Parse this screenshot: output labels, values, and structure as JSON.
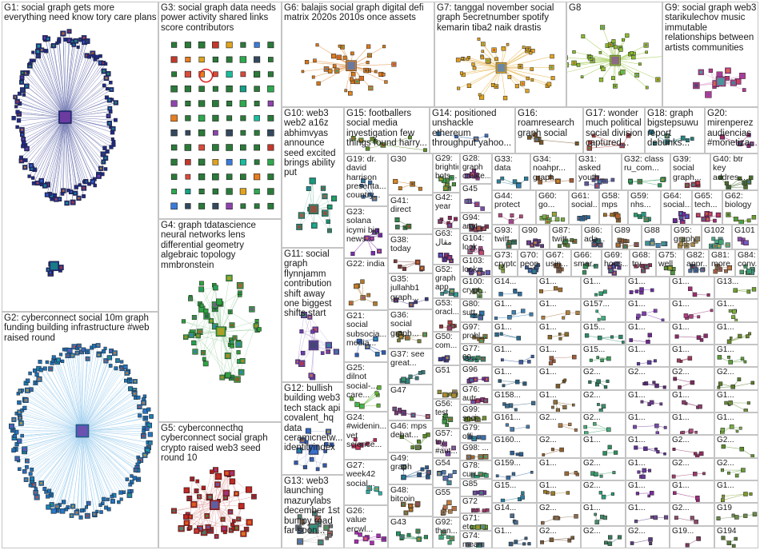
{
  "panels": [
    {
      "id": "G1",
      "title": "G1: social graph gets more everything need know tory care plans",
      "style": "big-blue",
      "accent": "#1f2a86"
    },
    {
      "id": "G2",
      "title": "G2: cyberconnect social 10m graph funding building infrastructure #web raised round",
      "style": "big-cyan",
      "accent": "#1e6fb5"
    },
    {
      "id": "G3",
      "title": "G3: social graph data needs power activity shared links score contributors",
      "style": "grid-green",
      "accent": "#2b7a3a"
    },
    {
      "id": "G4",
      "title": "G4: graph tdatascience neural networks lens differential geometry algebraic topology mmbronstein",
      "style": "cluster-green",
      "accent": "#2f9c3c"
    },
    {
      "id": "G5",
      "title": "G5: cyberconnecthq cyberconnect social graph crypto raised web3 seed round 10",
      "style": "cluster-red",
      "accent": "#b21c1c"
    },
    {
      "id": "G6",
      "title": "G6: balajis social graph digital defi matrix 2020s 2010s once assets",
      "style": "star-orange",
      "accent": "#d8791b"
    },
    {
      "id": "G7",
      "title": "G7: tanggal november social graph 5ecretnumber spotify kemarin tiba2 naik drastis",
      "style": "star-gold",
      "accent": "#e0a320"
    },
    {
      "id": "G8",
      "title": "G8",
      "style": "star-lime",
      "accent": "#8bbf2a"
    },
    {
      "id": "G9",
      "title": "G9: social graph web3 starikulechov music immutable relationships between artists communities",
      "style": "cluster-magenta",
      "accent": "#b8398f"
    },
    {
      "id": "G10",
      "title": "G10: web3 web2 a16z abhimvyas announce seed excited brings ability put",
      "style": "cluster-teal",
      "accent": "#1c8c73"
    },
    {
      "id": "G11",
      "title": "G11: social graph flynnjamm contribution shift away one biggest shifts start",
      "style": "cluster-violet",
      "accent": "#6b3fb0"
    },
    {
      "id": "G12",
      "title": "G12: bullish building web3 tech stack api covalent_hq data ceramicnetw... identityindex",
      "style": "cluster-blue",
      "accent": "#3358a8"
    },
    {
      "id": "G13",
      "title": "G13: web3 launching mazurylabs december 1st bumpy road far soon...",
      "style": "cluster-gray",
      "accent": "#6f6f6f"
    },
    {
      "id": "G14",
      "title": "G14: positioned unshackle ethereum throughput yahoo...",
      "style": "plain",
      "accent": "#3d6fb6"
    },
    {
      "id": "G15",
      "title": "G15: footballers social media investigation few things found harry...",
      "style": "plain",
      "accent": "#5e8c2b"
    },
    {
      "id": "G16",
      "title": "G16: roamresearch graph social",
      "style": "plain",
      "accent": "#7a5a2b"
    },
    {
      "id": "G17",
      "title": "G17: wonder much political social division captured...",
      "style": "plain",
      "accent": "#b04040"
    },
    {
      "id": "G18",
      "title": "G18: graph bigstepsuwu report debunks...",
      "style": "plain",
      "accent": "#2b7a7a"
    },
    {
      "id": "G20",
      "title": "G20: mirenperez audiencias #monetiza...",
      "style": "plain",
      "accent": "#8a2b7a"
    },
    {
      "id": "G19",
      "title": "G19: dr. david harrison presenta... country...",
      "style": "small",
      "accent": "#3b6ea5"
    },
    {
      "id": "G30",
      "title": "G30",
      "style": "small",
      "accent": "#c77a1f"
    },
    {
      "id": "G29",
      "title": "G29: brightidp... bots...",
      "style": "small",
      "accent": "#4a8f3b"
    },
    {
      "id": "G28",
      "title": "G28: graph create...",
      "style": "small",
      "accent": "#8b3a8b"
    },
    {
      "id": "G33",
      "title": "G33: data",
      "style": "small",
      "accent": "#2d7f9a"
    },
    {
      "id": "G34",
      "title": "G34: noahpr... graph...",
      "style": "small",
      "accent": "#9a5b2d"
    },
    {
      "id": "G31",
      "title": "G31: asked youth...",
      "style": "small",
      "accent": "#5b5b9a"
    },
    {
      "id": "G32",
      "title": "G32: class ru_com...",
      "style": "small",
      "accent": "#2d9a5b"
    },
    {
      "id": "G39",
      "title": "G39: social graph...",
      "style": "small",
      "accent": "#9a2d4a"
    },
    {
      "id": "G40",
      "title": "G40: btr key addres...",
      "style": "small",
      "accent": "#4a6d2d"
    },
    {
      "id": "G23",
      "title": "G23: solana icymi big news...",
      "style": "small",
      "accent": "#7a2db0"
    },
    {
      "id": "G22",
      "title": "G22: india",
      "style": "small",
      "accent": "#b07a2d"
    },
    {
      "id": "G21",
      "title": "G21: social subsocia... media...",
      "style": "small",
      "accent": "#2d5bb0"
    },
    {
      "id": "G25",
      "title": "G25: dilnot social-... care...",
      "style": "small",
      "accent": "#5bb02d"
    },
    {
      "id": "G24",
      "title": "G24: #widenin... vet science...",
      "style": "small",
      "accent": "#b02d5b"
    },
    {
      "id": "G27",
      "title": "G27: week42 social...",
      "style": "small",
      "accent": "#2db0a5"
    },
    {
      "id": "G26",
      "title": "G26: value ercwl...",
      "style": "small",
      "accent": "#a52db0"
    },
    {
      "id": "G41",
      "title": "G41: direct",
      "style": "small",
      "accent": "#3a7a3a"
    },
    {
      "id": "G38",
      "title": "G38: today",
      "style": "small",
      "accent": "#7a3a3a"
    },
    {
      "id": "G35",
      "title": "G35: jullahb1 graph...",
      "style": "small",
      "accent": "#3a3a7a"
    },
    {
      "id": "G36",
      "title": "G36: social graph...",
      "style": "small",
      "accent": "#7a7a3a"
    },
    {
      "id": "G37",
      "title": "G37: see great...",
      "style": "small",
      "accent": "#3a7a7a"
    },
    {
      "id": "G47",
      "title": "G47",
      "style": "small",
      "accent": "#7a3a7a"
    },
    {
      "id": "G46",
      "title": "G46: mps debat...",
      "style": "small",
      "accent": "#5a8a2a"
    },
    {
      "id": "G49",
      "title": "G49: graph",
      "style": "small",
      "accent": "#2a5a8a"
    },
    {
      "id": "G48",
      "title": "G48: bitcoin",
      "style": "small",
      "accent": "#8a5a2a"
    },
    {
      "id": "G43",
      "title": "G43",
      "style": "small",
      "accent": "#2a8a5a"
    },
    {
      "id": "G42",
      "title": "G42: year",
      "style": "small",
      "accent": "#8a2a5a"
    },
    {
      "id": "G63",
      "title": "G63: مقال",
      "style": "small",
      "accent": "#5a2a8a"
    },
    {
      "id": "G52",
      "title": "G52: graph app...",
      "style": "small",
      "accent": "#3c8c8c"
    },
    {
      "id": "G53",
      "title": "G53: oracl...",
      "style": "small",
      "accent": "#8c3c3c"
    },
    {
      "id": "G50",
      "title": "G50: com...",
      "style": "small",
      "accent": "#3c3c8c"
    },
    {
      "id": "G51",
      "title": "G51",
      "style": "small",
      "accent": "#8c8c3c"
    },
    {
      "id": "G56",
      "title": "G56: test",
      "style": "small",
      "accent": "#3c8c3c"
    },
    {
      "id": "G57",
      "title": "G57: try #aut...",
      "style": "small",
      "accent": "#8c3c8c"
    },
    {
      "id": "G54",
      "title": "G54",
      "style": "small",
      "accent": "#4c7cac"
    },
    {
      "id": "G55",
      "title": "G55",
      "style": "small",
      "accent": "#ac7c4c"
    },
    {
      "id": "G92",
      "title": "G92: than...",
      "style": "small",
      "accent": "#4cac7c"
    },
    {
      "id": "G45",
      "title": "G45",
      "style": "small",
      "accent": "#7c4cac"
    },
    {
      "id": "G44",
      "title": "G44: protect",
      "style": "small",
      "accent": "#ac4c7c"
    },
    {
      "id": "G60",
      "title": "G60: go...",
      "style": "small",
      "accent": "#7cac4c"
    },
    {
      "id": "G61",
      "title": "G61: social...",
      "style": "small",
      "accent": "#2c6c9c"
    },
    {
      "id": "G58",
      "title": "G58: mps",
      "style": "small",
      "accent": "#9c6c2c"
    },
    {
      "id": "G59",
      "title": "G59: nhs...",
      "style": "small",
      "accent": "#2c9c6c"
    },
    {
      "id": "G64",
      "title": "G64: social...",
      "style": "small",
      "accent": "#6c2c9c"
    },
    {
      "id": "G65",
      "title": "G65: tech...",
      "style": "small",
      "accent": "#9c2c6c"
    },
    {
      "id": "G62",
      "title": "G62: biology",
      "style": "small",
      "accent": "#6c9c2c"
    },
    {
      "id": "G93",
      "title": "G93: twitt...",
      "style": "small",
      "accent": "#3d7d5d"
    },
    {
      "id": "G94",
      "title": "G94: anyt...",
      "style": "small",
      "accent": "#7d3d5d"
    },
    {
      "id": "G90",
      "title": "G90",
      "style": "small",
      "accent": "#5d3d7d"
    },
    {
      "id": "G87",
      "title": "G87: twitt...",
      "style": "small",
      "accent": "#5d7d3d"
    },
    {
      "id": "G86",
      "title": "G86: ada...",
      "style": "small",
      "accent": "#3d5d7d"
    },
    {
      "id": "G89",
      "title": "G89",
      "style": "small",
      "accent": "#7d5d3d"
    },
    {
      "id": "G88",
      "title": "G88",
      "style": "small",
      "accent": "#4a8aaa"
    },
    {
      "id": "G95",
      "title": "G95: graph",
      "style": "small",
      "accent": "#aa8a4a"
    },
    {
      "id": "G102",
      "title": "G102",
      "style": "small",
      "accent": "#4aaa8a"
    },
    {
      "id": "G101",
      "title": "G101",
      "style": "small",
      "accent": "#8a4aaa"
    },
    {
      "id": "G104",
      "title": "G104: look...",
      "style": "small",
      "accent": "#aa4a8a"
    },
    {
      "id": "G73",
      "title": "G73: crypto",
      "style": "small",
      "accent": "#8aaa4a"
    },
    {
      "id": "G70",
      "title": "G70: peop...",
      "style": "small",
      "accent": "#3b5b8b"
    },
    {
      "id": "G67",
      "title": "G67: usin...",
      "style": "small",
      "accent": "#8b5b3b"
    },
    {
      "id": "G66",
      "title": "G66: smar...",
      "style": "small",
      "accent": "#3b8b5b"
    },
    {
      "id": "G69",
      "title": "G69: hous...",
      "style": "small",
      "accent": "#5b3b8b"
    },
    {
      "id": "G68",
      "title": "G68: try...",
      "style": "small",
      "accent": "#8b3b5b"
    },
    {
      "id": "G75",
      "title": "G75: well",
      "style": "small",
      "accent": "#5b8b3b"
    },
    {
      "id": "G82",
      "title": "G82: appr...",
      "style": "small",
      "accent": "#4b6b9b"
    },
    {
      "id": "G81",
      "title": "G81: more...",
      "style": "small",
      "accent": "#9b6b4b"
    },
    {
      "id": "G84",
      "title": "G84: conv...",
      "style": "small",
      "accent": "#4b9b6b"
    },
    {
      "id": "G103",
      "title": "G103: look...",
      "style": "small",
      "accent": "#6b4b9b"
    },
    {
      "id": "G83",
      "title": "G83",
      "style": "small",
      "accent": "#9b4b6b"
    },
    {
      "id": "G100",
      "title": "G100: crypt...",
      "style": "small",
      "accent": "#6b9b4b"
    },
    {
      "id": "G80",
      "title": "G80: sutt...",
      "style": "small",
      "accent": "#2e6e8e"
    },
    {
      "id": "G97",
      "title": "G97: probl...",
      "style": "small",
      "accent": "#8e6e2e"
    },
    {
      "id": "G77",
      "title": "G77: 00...",
      "style": "small",
      "accent": "#2e8e6e"
    },
    {
      "id": "G96",
      "title": "G96",
      "style": "small",
      "accent": "#6e2e8e"
    },
    {
      "id": "G76",
      "title": "G76: autr...",
      "style": "small",
      "accent": "#8e2e6e"
    },
    {
      "id": "G99",
      "title": "G99: soci...",
      "style": "small",
      "accent": "#6e8e2e"
    },
    {
      "id": "G79",
      "title": "G79: offi...",
      "style": "small",
      "accent": "#3a6a9a"
    },
    {
      "id": "G98",
      "title": "G98: ...",
      "style": "small",
      "accent": "#9a6a3a"
    },
    {
      "id": "G78",
      "title": "G78: curr...",
      "style": "small",
      "accent": "#3a9a6a"
    },
    {
      "id": "G85",
      "title": "G85",
      "style": "small",
      "accent": "#6a3a9a"
    },
    {
      "id": "G72",
      "title": "G72",
      "style": "small",
      "accent": "#9a3a6a"
    },
    {
      "id": "G71",
      "title": "G71: etc",
      "style": "small",
      "accent": "#6a9a3a"
    },
    {
      "id": "G74",
      "title": "G74: mean",
      "style": "small",
      "accent": "#4d7d9d"
    }
  ],
  "tiny_tiles": [
    {
      "title": "G14...",
      "accent": "#2f6f9f"
    },
    {
      "title": "G1...",
      "accent": "#9f6f2f"
    },
    {
      "title": "G1...",
      "accent": "#2f9f6f"
    },
    {
      "title": "G1...",
      "accent": "#6f2f9f"
    },
    {
      "title": "G1...",
      "accent": "#9f2f6f"
    },
    {
      "title": "G13...",
      "accent": "#6f9f2f"
    },
    {
      "title": "G1...",
      "accent": "#3f7faf"
    },
    {
      "title": "G1...",
      "accent": "#af7f3f"
    },
    {
      "title": "G157...",
      "accent": "#3faf7f"
    },
    {
      "title": "G1...",
      "accent": "#7f3faf"
    },
    {
      "title": "G1...",
      "accent": "#af3f7f"
    },
    {
      "title": "G1...",
      "accent": "#7faf3f"
    },
    {
      "title": "G1...",
      "accent": "#2a6a8a"
    },
    {
      "title": "G1...",
      "accent": "#8a6a2a"
    },
    {
      "title": "G15...",
      "accent": "#2a8a6a"
    },
    {
      "title": "G1...",
      "accent": "#6a2a8a"
    },
    {
      "title": "G1...",
      "accent": "#8a2a6a"
    },
    {
      "title": "G1...",
      "accent": "#6a8a2a"
    },
    {
      "title": "G1...",
      "accent": "#3c5c9c"
    },
    {
      "title": "G1...",
      "accent": "#9c5c3c"
    },
    {
      "title": "G15...",
      "accent": "#3c9c5c"
    },
    {
      "title": "G1...",
      "accent": "#5c3c9c"
    },
    {
      "title": "G1...",
      "accent": "#9c3c5c"
    },
    {
      "title": "G1...",
      "accent": "#5c9c3c"
    },
    {
      "title": "G1...",
      "accent": "#2b5b7b"
    },
    {
      "title": "G1...",
      "accent": "#7b5b2b"
    },
    {
      "title": "G2...",
      "accent": "#2b7b5b"
    },
    {
      "title": "G2...",
      "accent": "#5b2b7b"
    },
    {
      "title": "G2...",
      "accent": "#7b2b5b"
    },
    {
      "title": "G2...",
      "accent": "#5b7b2b"
    },
    {
      "title": "G158...",
      "accent": "#3d6d8d"
    },
    {
      "title": "G1...",
      "accent": "#8d6d3d"
    },
    {
      "title": "G2...",
      "accent": "#3d8d6d"
    },
    {
      "title": "G1...",
      "accent": "#6d3d8d"
    },
    {
      "title": "G1...",
      "accent": "#8d3d6d"
    },
    {
      "title": "G1...",
      "accent": "#6d8d3d"
    },
    {
      "title": "G161...",
      "accent": "#4a7aaa"
    },
    {
      "title": "G2...",
      "accent": "#aa7a4a"
    },
    {
      "title": "G2...",
      "accent": "#4aaa7a"
    },
    {
      "title": "G1...",
      "accent": "#7a4aaa"
    },
    {
      "title": "G1...",
      "accent": "#aa4a7a"
    },
    {
      "title": "G1...",
      "accent": "#7aaa4a"
    },
    {
      "title": "G160...",
      "accent": "#2e5e8e"
    },
    {
      "title": "G2...",
      "accent": "#8e5e2e"
    },
    {
      "title": "G1...",
      "accent": "#2e8e5e"
    },
    {
      "title": "G1...",
      "accent": "#5e2e8e"
    },
    {
      "title": "G2...",
      "accent": "#8e2e5e"
    },
    {
      "title": "G2...",
      "accent": "#5e8e2e"
    },
    {
      "title": "G159...",
      "accent": "#3b6b9b"
    },
    {
      "title": "G1...",
      "accent": "#9b6b3b"
    },
    {
      "title": "G2...",
      "accent": "#3b9b6b"
    },
    {
      "title": "G1...",
      "accent": "#6b3b9b"
    },
    {
      "title": "G2...",
      "accent": "#9b3b6b"
    },
    {
      "title": "G2...",
      "accent": "#6b9b3b"
    },
    {
      "title": "G15...",
      "accent": "#2c7c9c"
    },
    {
      "title": "G1...",
      "accent": "#9c7c2c"
    },
    {
      "title": "G2...",
      "accent": "#2c9c7c"
    },
    {
      "title": "G1...",
      "accent": "#7c2c9c"
    },
    {
      "title": "G1...",
      "accent": "#9c2c7c"
    },
    {
      "title": "G1...",
      "accent": "#7c9c2c"
    },
    {
      "title": "G14...",
      "accent": "#4b6b8b"
    },
    {
      "title": "G2...",
      "accent": "#8b6b4b"
    },
    {
      "title": "G1...",
      "accent": "#4b8b6b"
    },
    {
      "title": "G1...",
      "accent": "#6b4b8b"
    },
    {
      "title": "G2...",
      "accent": "#8b4b6b"
    },
    {
      "title": "G19",
      "accent": "#6b8b4b"
    },
    {
      "title": "G1...",
      "accent": "#3a5a7a"
    },
    {
      "title": "G2...",
      "accent": "#7a5a3a"
    },
    {
      "title": "G2...",
      "accent": "#3a7a5a"
    },
    {
      "title": "G2...",
      "accent": "#5a3a7a"
    },
    {
      "title": "G19...",
      "accent": "#7a3a5a"
    },
    {
      "title": "G194",
      "accent": "#5a7a3a"
    }
  ]
}
